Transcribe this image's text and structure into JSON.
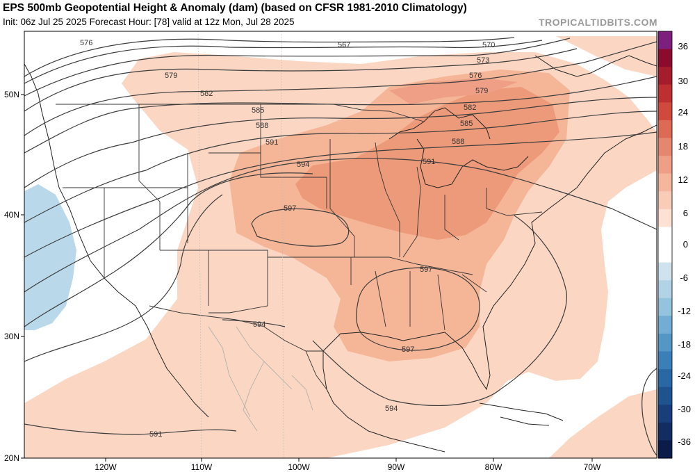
{
  "header": {
    "title": "EPS 500mb Geopotential Height & Anomaly (dam) (based on CFSR 1981-2010 Climatology)",
    "subtitle": "Init: 06z Jul 25 2025   Forecast Hour: [78]   valid at 12z Mon, Jul 28 2025",
    "credit": "TROPICALTIDBITS.COM"
  },
  "axes": {
    "x_ticks": [
      "120W",
      "110W",
      "100W",
      "90W",
      "80W",
      "70W"
    ],
    "y_ticks": [
      "50N",
      "40N",
      "30N",
      "20N"
    ]
  },
  "colorbar": {
    "labels": [
      "36",
      "30",
      "24",
      "18",
      "12",
      "6",
      "0",
      "-6",
      "-12",
      "-18",
      "-24",
      "-30",
      "-36"
    ],
    "colors": [
      "#7d1f7d",
      "#8b0a2e",
      "#a51d2d",
      "#bd2f31",
      "#cf4a3d",
      "#dc6a55",
      "#e5866f",
      "#ee9f85",
      "#f4b79e",
      "#f9ccb7",
      "#fde2d4",
      "#ffffff",
      "#ffffff",
      "#cfe3ef",
      "#b2d3e6",
      "#94c3dd",
      "#74add3",
      "#5496c6",
      "#3b7fb8",
      "#2a68a5",
      "#1f5390",
      "#183f7a",
      "#122d62",
      "#0b1c4a"
    ]
  },
  "contours": {
    "labels": [
      "567",
      "570",
      "573",
      "576",
      "576",
      "579",
      "579",
      "582",
      "582",
      "585",
      "585",
      "588",
      "588",
      "591",
      "591",
      "594",
      "597",
      "597",
      "597",
      "594",
      "594",
      "591"
    ]
  },
  "anomaly_colors": {
    "light": "#fbd7c3",
    "medium": "#f5b597",
    "dark": "#ec9a79",
    "cool": "#b9d9ea"
  }
}
